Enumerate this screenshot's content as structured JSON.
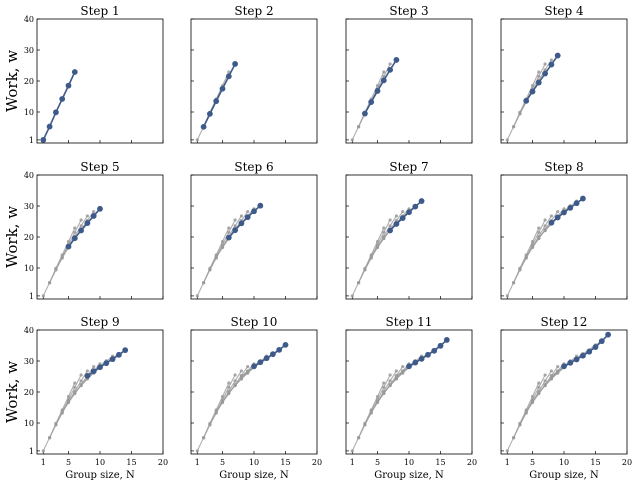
{
  "chart_data": {
    "type": "line",
    "layout": "3x4 grid of panels",
    "xlabel": "Group size, N",
    "ylabel": "Work, w",
    "xlim": [
      0,
      20
    ],
    "ylim": [
      0,
      40
    ],
    "xticks": [
      "1",
      "5",
      "10",
      "15",
      "20"
    ],
    "yticks": [
      "1",
      "10",
      "20",
      "30",
      "40"
    ],
    "colors": {
      "current": "#3d5a8a",
      "previous": "#9a9a9a"
    },
    "panels": [
      {
        "title": "Step 1",
        "n": [
          1,
          2,
          3,
          4,
          5,
          6
        ],
        "w": [
          1,
          5.3,
          9.9,
          14.2,
          18.5,
          22.9
        ]
      },
      {
        "title": "Step 2",
        "n": [
          2,
          3,
          4,
          5,
          6,
          7
        ],
        "w": [
          5.2,
          9.4,
          13.5,
          17.5,
          21.5,
          25.5
        ]
      },
      {
        "title": "Step 3",
        "n": [
          3,
          4,
          5,
          6,
          7,
          8
        ],
        "w": [
          9.5,
          13.2,
          16.8,
          20.2,
          23.6,
          26.8
        ]
      },
      {
        "title": "Step 4",
        "n": [
          4,
          5,
          6,
          7,
          8,
          9
        ],
        "w": [
          13.6,
          16.6,
          19.5,
          22.4,
          25.3,
          28.2
        ]
      },
      {
        "title": "Step 5",
        "n": [
          5,
          6,
          7,
          8,
          9,
          10
        ],
        "w": [
          16.9,
          19.6,
          22.1,
          24.5,
          26.8,
          29.1
        ]
      },
      {
        "title": "Step 6",
        "n": [
          6,
          7,
          8,
          9,
          10,
          11
        ],
        "w": [
          19.8,
          22.2,
          24.4,
          26.4,
          28.3,
          30.1
        ]
      },
      {
        "title": "Step 7",
        "n": [
          7,
          8,
          9,
          10,
          11,
          12
        ],
        "w": [
          22.1,
          24.2,
          26.1,
          28.0,
          29.8,
          31.6
        ]
      },
      {
        "title": "Step 8",
        "n": [
          8,
          9,
          10,
          11,
          12,
          13
        ],
        "w": [
          24.6,
          26.3,
          27.9,
          29.4,
          30.9,
          32.4
        ]
      },
      {
        "title": "Step 9",
        "n": [
          8,
          9,
          10,
          11,
          12,
          13,
          14
        ],
        "w": [
          25.2,
          26.7,
          28.0,
          29.3,
          30.6,
          32.0,
          33.5
        ]
      },
      {
        "title": "Step 10",
        "n": [
          10,
          11,
          12,
          13,
          14,
          15
        ],
        "w": [
          28.3,
          29.6,
          30.9,
          32.2,
          33.6,
          35.2
        ]
      },
      {
        "title": "Step 11",
        "n": [
          10,
          11,
          12,
          13,
          14,
          15,
          16
        ],
        "w": [
          28.3,
          29.5,
          30.7,
          32.0,
          33.3,
          34.9,
          36.8
        ]
      },
      {
        "title": "Step 12",
        "n": [
          10,
          11,
          12,
          13,
          14,
          15,
          16,
          17
        ],
        "w": [
          28.3,
          29.4,
          30.5,
          31.7,
          33.0,
          34.5,
          36.4,
          38.5
        ]
      }
    ]
  }
}
